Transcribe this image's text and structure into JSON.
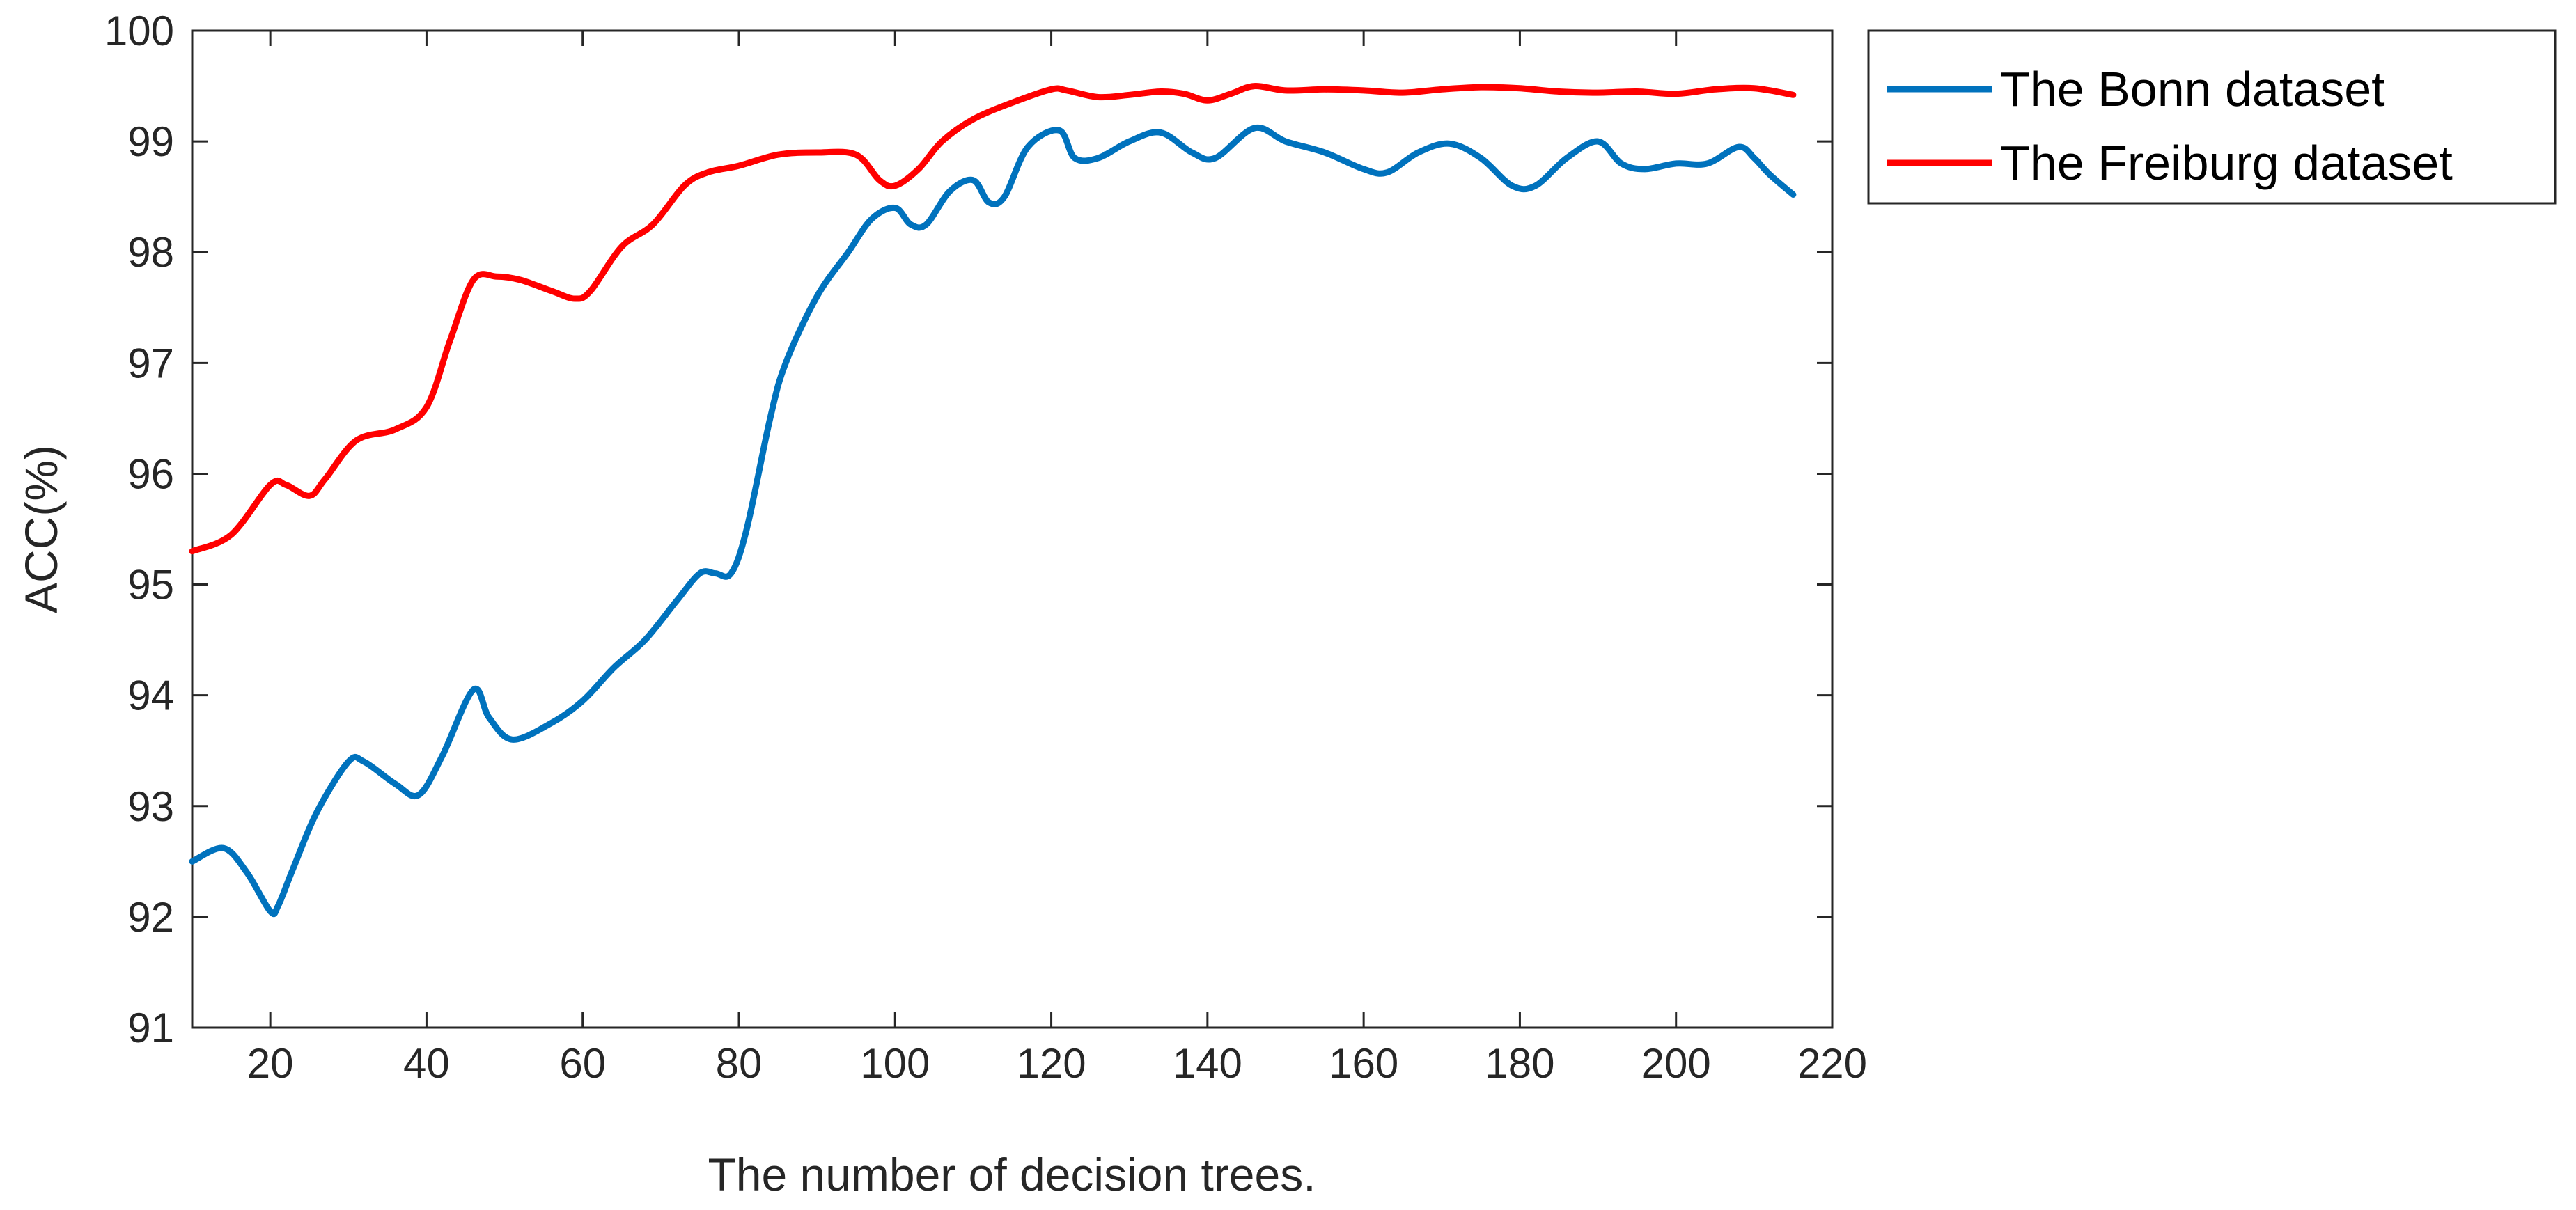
{
  "chart_data": {
    "type": "line",
    "title": "",
    "xlabel": "The number of decision trees.",
    "ylabel": "ACC(%)",
    "xlim": [
      10,
      220
    ],
    "ylim": [
      91,
      100
    ],
    "xticks": [
      20,
      40,
      60,
      80,
      100,
      120,
      140,
      160,
      180,
      200,
      220
    ],
    "yticks": [
      91,
      92,
      93,
      94,
      95,
      96,
      97,
      98,
      99,
      100
    ],
    "grid": false,
    "legend_position": "outside-top-right",
    "series": [
      {
        "name": "The Bonn dataset",
        "color": "#0072BD",
        "x": [
          10,
          14,
          17,
          20,
          21,
          23,
          26,
          30,
          32,
          36,
          39,
          42,
          46,
          48,
          51,
          56,
          60,
          64,
          68,
          72,
          75,
          77,
          79,
          81,
          84,
          86,
          90,
          94,
          97,
          100,
          102,
          104,
          107,
          110,
          112,
          114,
          117,
          121,
          123,
          126,
          130,
          134,
          138,
          141,
          146,
          150,
          155,
          160,
          163,
          167,
          171,
          175,
          179,
          182,
          186,
          190,
          193,
          196,
          200,
          204,
          208,
          210,
          212,
          215
        ],
        "y": [
          92.5,
          92.62,
          92.4,
          92.05,
          92.1,
          92.45,
          92.95,
          93.4,
          93.4,
          93.2,
          93.1,
          93.45,
          94.05,
          93.8,
          93.6,
          93.75,
          93.95,
          94.25,
          94.5,
          94.85,
          95.1,
          95.1,
          95.1,
          95.5,
          96.5,
          97.0,
          97.6,
          98.0,
          98.3,
          98.4,
          98.25,
          98.25,
          98.55,
          98.65,
          98.45,
          98.5,
          98.95,
          99.1,
          98.85,
          98.85,
          99.0,
          99.08,
          98.9,
          98.85,
          99.12,
          99.0,
          98.9,
          98.75,
          98.72,
          98.9,
          98.98,
          98.85,
          98.6,
          98.6,
          98.85,
          99.0,
          98.8,
          98.75,
          98.8,
          98.8,
          98.95,
          98.85,
          98.7,
          98.52
        ]
      },
      {
        "name": "The Freiburg dataset",
        "color": "#FF0000",
        "x": [
          10,
          15,
          20,
          22,
          25,
          27,
          31,
          36,
          40,
          43,
          46,
          49,
          52,
          56,
          59,
          61,
          65,
          69,
          73,
          76,
          80,
          85,
          90,
          95,
          98,
          100,
          103,
          106,
          110,
          115,
          120,
          122,
          126,
          130,
          134,
          137,
          140,
          143,
          146,
          150,
          155,
          160,
          165,
          170,
          175,
          180,
          185,
          190,
          195,
          200,
          205,
          210,
          215
        ],
        "y": [
          95.3,
          95.45,
          95.9,
          95.9,
          95.8,
          95.95,
          96.3,
          96.4,
          96.6,
          97.2,
          97.75,
          97.78,
          97.75,
          97.65,
          97.58,
          97.65,
          98.05,
          98.25,
          98.6,
          98.72,
          98.78,
          98.88,
          98.9,
          98.88,
          98.65,
          98.6,
          98.75,
          99.0,
          99.2,
          99.35,
          99.47,
          99.46,
          99.4,
          99.42,
          99.45,
          99.43,
          99.37,
          99.43,
          99.5,
          99.46,
          99.47,
          99.46,
          99.44,
          99.47,
          99.49,
          99.48,
          99.45,
          99.44,
          99.45,
          99.43,
          99.47,
          99.48,
          99.42
        ]
      }
    ]
  }
}
